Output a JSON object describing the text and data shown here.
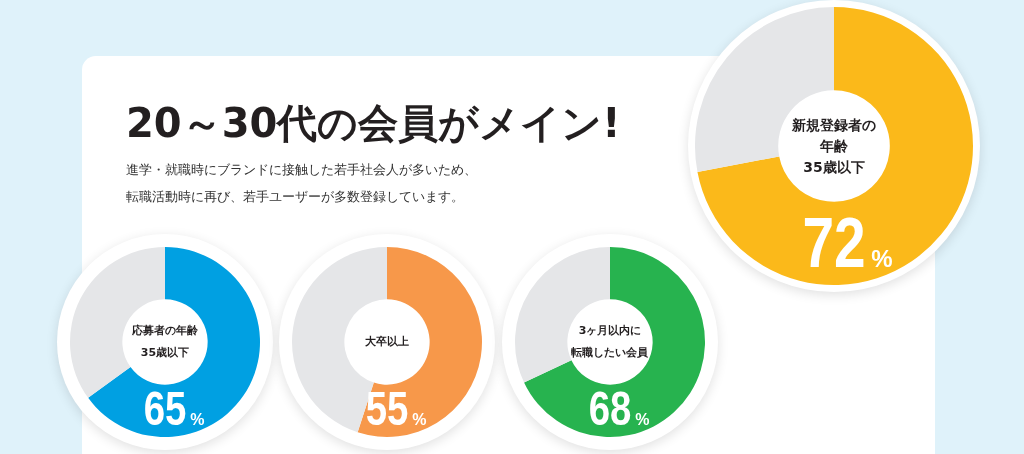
{
  "chart_data": [
    {
      "type": "other",
      "title": "20～30代の会員がメイン!",
      "subtitle": "進学・就職時にブランドに接触した若手社会人が多いため、転職活動時に再び、若手ユーザーが多数登録しています。"
    },
    {
      "type": "donut",
      "title": "新規登録者の年齢",
      "subtitle": "35歳以下",
      "categories": [
        null,
        null
      ],
      "values": [
        72,
        28
      ],
      "colors": [
        "#fbb91a",
        "#e5e6e8"
      ],
      "value_labels": [
        "72%",
        null
      ]
    },
    {
      "type": "donut",
      "title": "応募者の年齢",
      "subtitle": "35歳以下",
      "categories": [
        null,
        null
      ],
      "values": [
        65,
        35
      ],
      "colors": [
        "#00a0e2",
        "#e5e6e8"
      ],
      "value_labels": [
        "65%",
        null
      ]
    },
    {
      "type": "donut",
      "title": "大卒以上",
      "categories": [
        null,
        null
      ],
      "values": [
        55,
        45
      ],
      "colors": [
        "#f7984a",
        "#e5e6e8"
      ],
      "value_labels": [
        "55%",
        null
      ]
    },
    {
      "type": "donut",
      "title": "3ヶ月以内に",
      "subtitle": "転職したい会員",
      "categories": [
        null,
        null
      ],
      "values": [
        68,
        32
      ],
      "colors": [
        "#27b34f",
        "#e5e6e8"
      ],
      "value_labels": [
        "68%",
        null
      ]
    }
  ]
}
